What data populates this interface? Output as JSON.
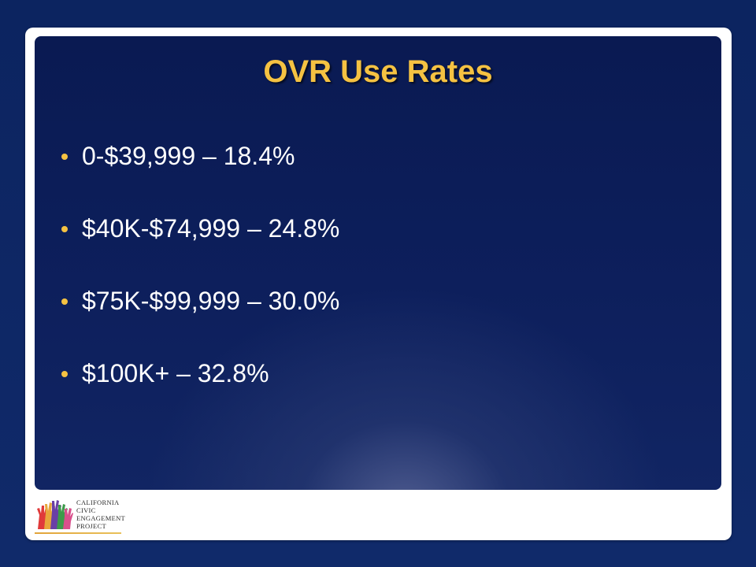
{
  "slide": {
    "title": "OVR Use Rates",
    "bullets": [
      "0-$39,999 – 18.4%",
      "$40K-$74,999 – 24.8%",
      "$75K-$99,999 – 30.0%",
      "$100K+ – 32.8%"
    ]
  },
  "logo": {
    "text": "California\nCivic\nEngagement\nProject",
    "icon": "raised-hands-icon"
  },
  "colors": {
    "page_background": "#0d2463",
    "title": "#f5c242",
    "bullet_dot": "#f5c242",
    "bullet_text": "#ffffff",
    "frame": "#ffffff"
  }
}
